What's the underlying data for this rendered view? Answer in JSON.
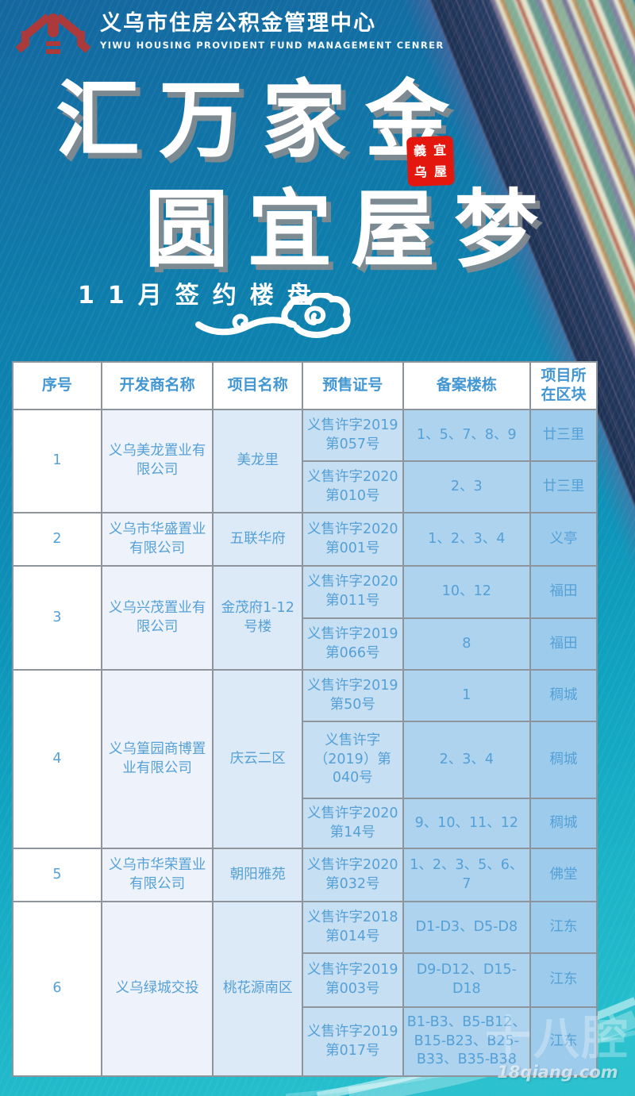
{
  "header": {
    "org_name": "义乌市住房公积金管理中心",
    "org_name_en": "YIWU HOUSING PROVIDENT FUND MANAGEMENT CENRER"
  },
  "hero": {
    "title_line1": "汇万家金",
    "title_line2": "圆宜屋梦",
    "seal_chars": [
      "義",
      "宜",
      "乌",
      "屋"
    ],
    "subtitle": "11月签约楼盘"
  },
  "table": {
    "headers": [
      "序号",
      "开发商名称",
      "项目名称",
      "预售证号",
      "备案楼栋",
      "项目所在区块"
    ],
    "rows": [
      {
        "no": "1",
        "developer": "义乌美龙置业有限公司",
        "project": "美龙里",
        "subrows": [
          {
            "cert": "义售许字2019第057号",
            "buildings": "1、5、7、8、9",
            "district": "廿三里"
          },
          {
            "cert": "义售许字2020第010号",
            "buildings": "2、3",
            "district": "廿三里"
          }
        ]
      },
      {
        "no": "2",
        "developer": "义乌市华盛置业有限公司",
        "project": "五联华府",
        "subrows": [
          {
            "cert": "义售许字2020第001号",
            "buildings": "1、2、3、4",
            "district": "义亭"
          }
        ]
      },
      {
        "no": "3",
        "developer": "义乌兴茂置业有限公司",
        "project": "金茂府1-12号楼",
        "subrows": [
          {
            "cert": "义售许字2020第011号",
            "buildings": "10、12",
            "district": "福田"
          },
          {
            "cert": "义售许字2019第066号",
            "buildings": "8",
            "district": "福田"
          }
        ]
      },
      {
        "no": "4",
        "developer": "义乌篁园商博置业有限公司",
        "project": "庆云二区",
        "subrows": [
          {
            "cert": "义售许字2019第50号",
            "buildings": "1",
            "district": "稠城"
          },
          {
            "cert": "义售许字（2019）第040号",
            "buildings": "2、3、4",
            "district": "稠城"
          },
          {
            "cert": "义售许字2020第14号",
            "buildings": "9、10、11、12",
            "district": "稠城"
          }
        ]
      },
      {
        "no": "5",
        "developer": "义乌市华荣置业有限公司",
        "project": "朝阳雅苑",
        "subrows": [
          {
            "cert": "义售许字2020第032号",
            "buildings": "1、2、3、5、6、7",
            "district": "佛堂"
          }
        ]
      },
      {
        "no": "6",
        "developer": "义乌绿城交投",
        "project": "桃花源南区",
        "subrows": [
          {
            "cert": "义售许字2018第014号",
            "buildings": "D1-D3、D5-D8",
            "district": "江东"
          },
          {
            "cert": "义售许字2019第003号",
            "buildings": "D9-D12、D15-D18",
            "district": "江东"
          },
          {
            "cert": "义售许字2019第017号",
            "buildings": "B1-B3、B5-B12、B15-B23、B25-B33、B35-B38",
            "district": "江东"
          }
        ]
      }
    ]
  },
  "watermark": {
    "logo_text": "十八腔",
    "site": "18qiang.com"
  },
  "colors": {
    "seal_red": "#e3170d",
    "logo_red": "#ad3a3b",
    "table_text_blue": "#55a0d6",
    "background_top_blue": "#14679f",
    "background_bottom_teal": "#28c3d0"
  }
}
